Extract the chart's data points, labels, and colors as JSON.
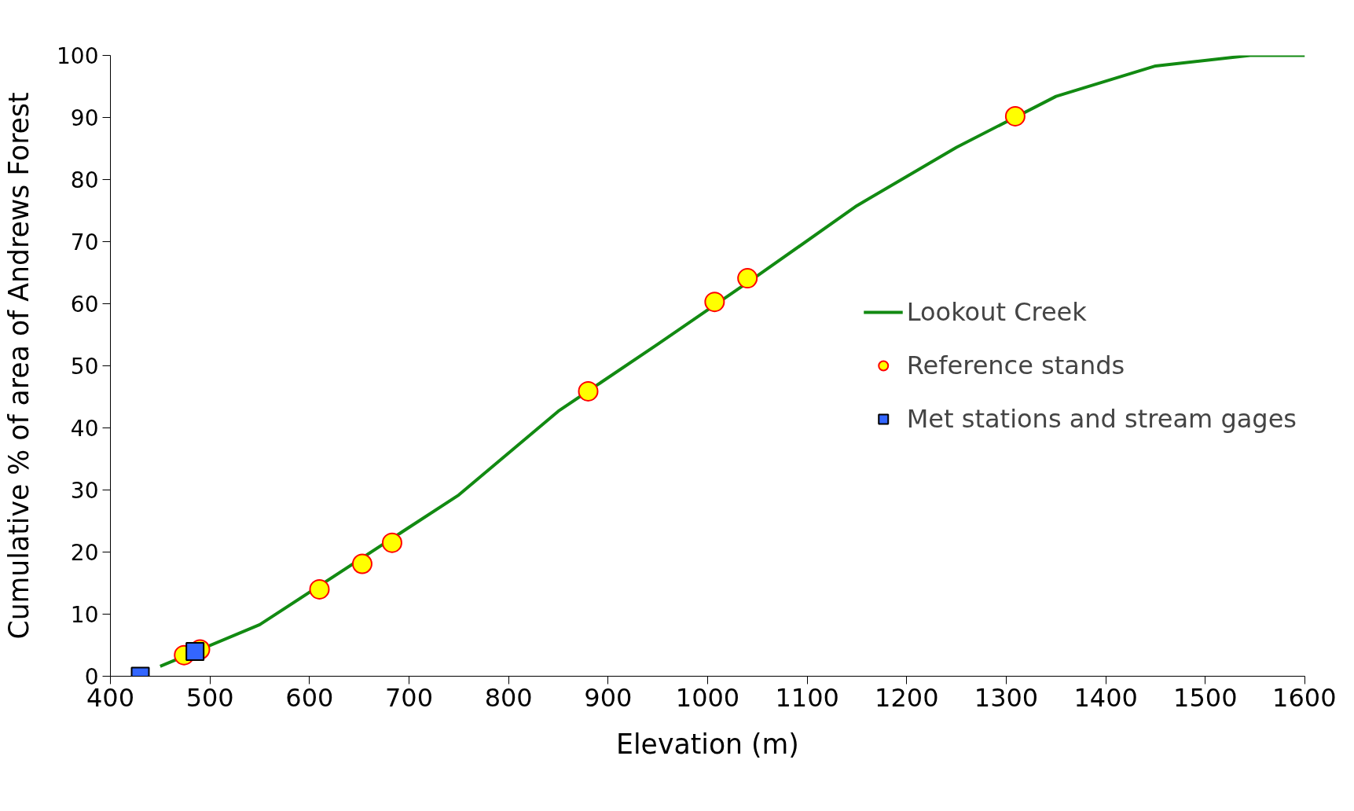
{
  "chart_data": {
    "type": "line",
    "xlabel": "Elevation (m)",
    "ylabel": "Cumulative % of area of Andrews Forest",
    "xlim": [
      400,
      1600
    ],
    "xticks": [
      400,
      500,
      600,
      700,
      800,
      900,
      1000,
      1100,
      1200,
      1300,
      1400,
      1500,
      1600
    ],
    "ylim": [
      0,
      100
    ],
    "yticks": [
      0,
      10,
      20,
      30,
      40,
      50,
      60,
      70,
      80,
      90,
      100
    ],
    "grid": false,
    "legend": "right",
    "series": [
      {
        "name": "Lookout Creek",
        "color": "#128a12",
        "line_style": "solid",
        "x": [
          450,
          550,
          750,
          850,
          950,
          1050,
          1150,
          1250,
          1350,
          1450,
          1545,
          1600
        ],
        "values": [
          1.6,
          8.3,
          29.2,
          42.7,
          53.5,
          64.5,
          75.8,
          85.2,
          93.4,
          98.3,
          100,
          100
        ]
      },
      {
        "name": "Reference stands",
        "type": "scatter",
        "marker": "circle",
        "color": "#ffff00",
        "x": [
          474,
          490,
          610,
          653,
          683,
          880,
          1007,
          1040,
          1309
        ],
        "values": [
          3.4,
          4.3,
          14,
          18.1,
          21.5,
          45.9,
          60.3,
          64.1,
          90.2
        ]
      },
      {
        "name": "Met stations and stream gages",
        "type": "scatter",
        "marker": "square",
        "color": "#3366ff",
        "x": [
          430,
          485
        ],
        "values": [
          0,
          4.0
        ]
      }
    ]
  }
}
